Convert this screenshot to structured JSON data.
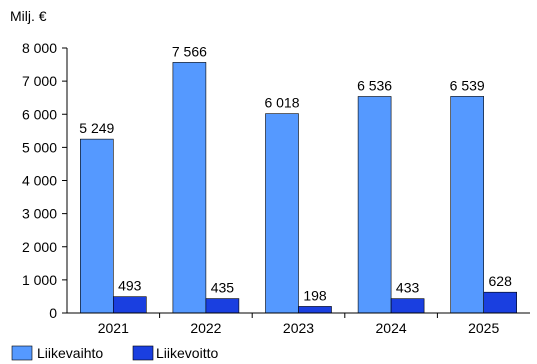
{
  "chart_data": {
    "type": "bar",
    "unit_label": "Milj. €",
    "categories": [
      "2021",
      "2022",
      "2023",
      "2024",
      "2025"
    ],
    "series": [
      {
        "name": "Liikevaihto",
        "values": [
          5249,
          7566,
          6018,
          6536,
          6539
        ],
        "labels": [
          "5 249",
          "7 566",
          "6 018",
          "6 536",
          "6 539"
        ],
        "color": "#5599ff"
      },
      {
        "name": "Liikevoitto",
        "values": [
          493,
          435,
          198,
          433,
          628
        ],
        "labels": [
          "493",
          "435",
          "198",
          "433",
          "628"
        ],
        "color": "#1a3fe0"
      }
    ],
    "ylim": [
      0,
      8000
    ],
    "yticks": [
      0,
      1000,
      2000,
      3000,
      4000,
      5000,
      6000,
      7000,
      8000
    ],
    "ytick_labels": [
      "0",
      "1 000",
      "2 000",
      "3 000",
      "4 000",
      "5 000",
      "6 000",
      "7 000",
      "8 000"
    ],
    "grid": false,
    "legend_position": "bottom-left"
  }
}
